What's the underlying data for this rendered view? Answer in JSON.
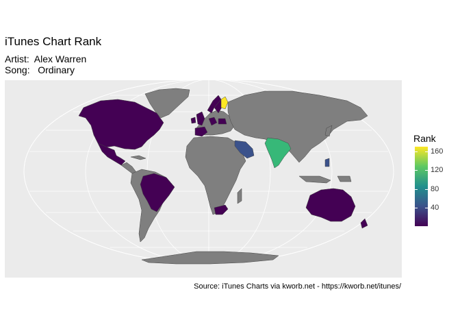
{
  "title": "iTunes Chart Rank",
  "subtitle_artist": "Artist:  Alex Warren",
  "subtitle_song": "Song:   Ordinary",
  "caption": "Source: iTunes Charts via kworb.net - https://kworb.net/itunes/",
  "legend": {
    "title": "Rank",
    "ticks": [
      40,
      80,
      120,
      160
    ],
    "range": [
      1,
      170
    ],
    "palette": [
      "#440154",
      "#3b528b",
      "#21908d",
      "#5dc863",
      "#fde725"
    ]
  },
  "colors": {
    "panel_background": "#ebebeb",
    "no_data_land": "#7f7f7f",
    "graticule": "#ffffff"
  },
  "map_data": {
    "projection": "Mollweide",
    "countries_with_rank": [
      {
        "name": "United States",
        "rank": 1
      },
      {
        "name": "Canada",
        "rank": 1
      },
      {
        "name": "Mexico",
        "rank": 5
      },
      {
        "name": "Brazil",
        "rank": 3
      },
      {
        "name": "Australia",
        "rank": 1
      },
      {
        "name": "New Zealand",
        "rank": 1
      },
      {
        "name": "South Africa",
        "rank": 2
      },
      {
        "name": "Saudi Arabia",
        "rank": 50
      },
      {
        "name": "India",
        "rank": 110
      },
      {
        "name": "Finland",
        "rank": 165
      },
      {
        "name": "Sweden",
        "rank": 2
      },
      {
        "name": "Norway",
        "rank": 3
      },
      {
        "name": "United Kingdom",
        "rank": 1
      },
      {
        "name": "Ireland",
        "rank": 1
      },
      {
        "name": "Germany",
        "rank": 5
      },
      {
        "name": "Poland",
        "rank": 8
      },
      {
        "name": "Spain",
        "rank": 10
      },
      {
        "name": "Philippines",
        "rank": 45
      }
    ]
  }
}
